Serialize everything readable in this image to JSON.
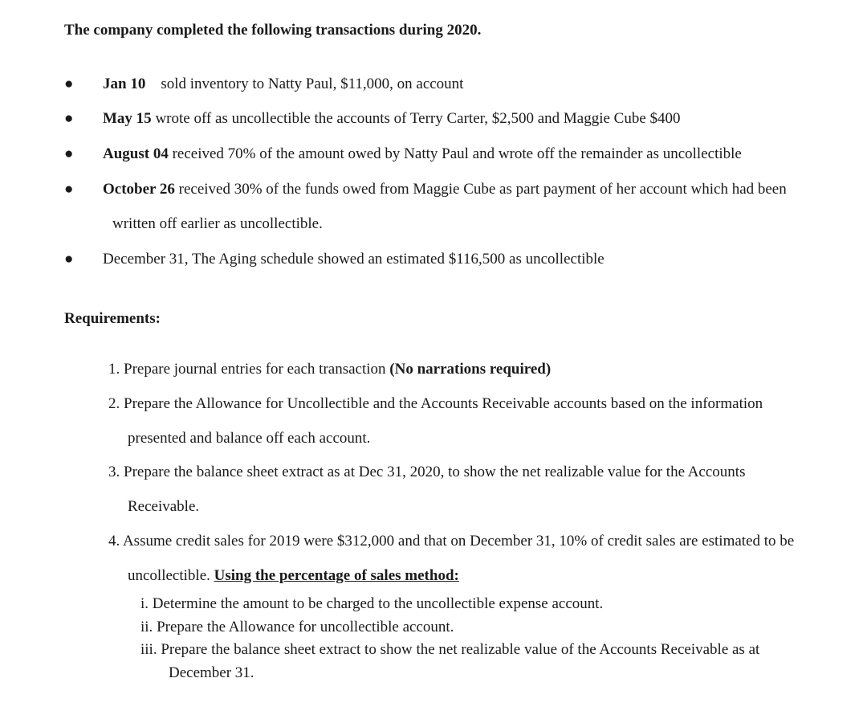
{
  "intro": "The company completed the following transactions during 2020.",
  "transactions": [
    {
      "bullet": "●",
      "date": "Jan 10",
      "spacer": "    ",
      "text": "sold inventory to Natty Paul, $11,000, on account"
    },
    {
      "bullet": "●",
      "date": "May 15",
      "spacer": " ",
      "text": "wrote off as uncollectible the accounts of Terry Carter, $2,500 and Maggie Cube $400"
    },
    {
      "bullet": "●",
      "date": "August 04",
      "spacer": " ",
      "text": "received 70% of the amount owed by Natty Paul and wrote off the remainder as uncollectible"
    },
    {
      "bullet": "●",
      "date": "October 26",
      "spacer": " ",
      "text": "received 30% of the funds owed from Maggie Cube as part payment of her account which had been written off earlier as uncollectible."
    },
    {
      "bullet": "●",
      "date": "",
      "spacer": "",
      "text": "December 31, The Aging schedule showed an estimated $116,500 as uncollectible"
    }
  ],
  "requirements_heading": "Requirements:",
  "requirements": [
    {
      "num": "1. ",
      "text_pre": "Prepare journal entries for each transaction ",
      "bold": "(No narrations required)",
      "text_post": ""
    },
    {
      "num": "2. ",
      "text_pre": "Prepare the Allowance for Uncollectible and the Accounts Receivable accounts based on the information presented and balance off each account.",
      "bold": "",
      "text_post": ""
    },
    {
      "num": "3. ",
      "text_pre": "Prepare the balance sheet extract as at Dec 31, 2020, to show the net realizable value for the Accounts Receivable.",
      "bold": "",
      "text_post": ""
    },
    {
      "num": "4. ",
      "text_pre": "Assume credit sales for 2019 were $312,000 and that on December 31, 10% of credit sales are estimated to be uncollectible. ",
      "underline": "Using the percentage of sales method:",
      "text_post": ""
    }
  ],
  "sublist": [
    {
      "num": "i. ",
      "text": "Determine the amount to be charged to the uncollectible expense account."
    },
    {
      "num": "ii. ",
      "text": "Prepare the Allowance for uncollectible account."
    },
    {
      "num": "iii. ",
      "text": "Prepare the balance sheet extract to show the net realizable value of the Accounts Receivable as at December 31."
    }
  ]
}
